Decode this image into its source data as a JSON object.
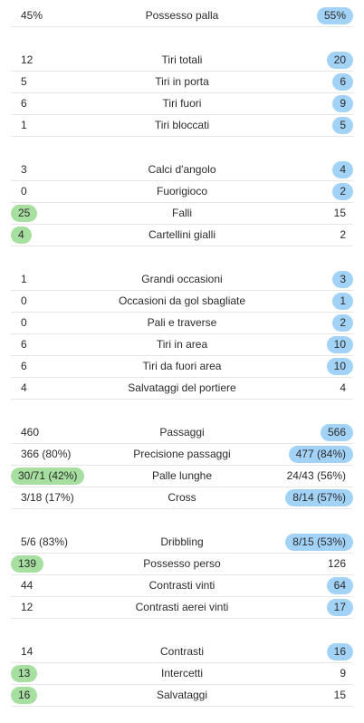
{
  "colors": {
    "home_highlight": "#a7dfa0",
    "away_highlight": "#a3d2f7",
    "divider": "#e6e6e6"
  },
  "groups": [
    {
      "rows": [
        {
          "home": "45%",
          "label": "Possesso palla",
          "away": "55%",
          "winner": "away"
        }
      ]
    },
    {
      "rows": [
        {
          "home": "12",
          "label": "Tiri totali",
          "away": "20",
          "winner": "away"
        },
        {
          "home": "5",
          "label": "Tiri in porta",
          "away": "6",
          "winner": "away"
        },
        {
          "home": "6",
          "label": "Tiri fuori",
          "away": "9",
          "winner": "away"
        },
        {
          "home": "1",
          "label": "Tiri bloccati",
          "away": "5",
          "winner": "away"
        }
      ]
    },
    {
      "rows": [
        {
          "home": "3",
          "label": "Calci d'angolo",
          "away": "4",
          "winner": "away"
        },
        {
          "home": "0",
          "label": "Fuorigioco",
          "away": "2",
          "winner": "away"
        },
        {
          "home": "25",
          "label": "Falli",
          "away": "15",
          "winner": "home"
        },
        {
          "home": "4",
          "label": "Cartellini gialli",
          "away": "2",
          "winner": "home"
        }
      ]
    },
    {
      "rows": [
        {
          "home": "1",
          "label": "Grandi occasioni",
          "away": "3",
          "winner": "away"
        },
        {
          "home": "0",
          "label": "Occasioni da gol sbagliate",
          "away": "1",
          "winner": "away"
        },
        {
          "home": "0",
          "label": "Pali e traverse",
          "away": "2",
          "winner": "away"
        },
        {
          "home": "6",
          "label": "Tiri in area",
          "away": "10",
          "winner": "away"
        },
        {
          "home": "6",
          "label": "Tiri da fuori area",
          "away": "10",
          "winner": "away"
        },
        {
          "home": "4",
          "label": "Salvataggi del portiere",
          "away": "4",
          "winner": "none"
        }
      ]
    },
    {
      "rows": [
        {
          "home": "460",
          "label": "Passaggi",
          "away": "566",
          "winner": "away"
        },
        {
          "home": "366 (80%)",
          "label": "Precisione passaggi",
          "away": "477 (84%)",
          "winner": "away"
        },
        {
          "home": "30/71 (42%)",
          "label": "Palle lunghe",
          "away": "24/43 (56%)",
          "winner": "home"
        },
        {
          "home": "3/18 (17%)",
          "label": "Cross",
          "away": "8/14 (57%)",
          "winner": "away"
        }
      ]
    },
    {
      "rows": [
        {
          "home": "5/6 (83%)",
          "label": "Dribbling",
          "away": "8/15 (53%)",
          "winner": "away"
        },
        {
          "home": "139",
          "label": "Possesso perso",
          "away": "126",
          "winner": "home"
        },
        {
          "home": "44",
          "label": "Contrasti vinti",
          "away": "64",
          "winner": "away"
        },
        {
          "home": "12",
          "label": "Contrasti aerei vinti",
          "away": "17",
          "winner": "away"
        }
      ]
    },
    {
      "rows": [
        {
          "home": "14",
          "label": "Contrasti",
          "away": "16",
          "winner": "away"
        },
        {
          "home": "13",
          "label": "Intercetti",
          "away": "9",
          "winner": "home"
        },
        {
          "home": "16",
          "label": "Salvataggi",
          "away": "15",
          "winner": "home"
        }
      ]
    }
  ]
}
